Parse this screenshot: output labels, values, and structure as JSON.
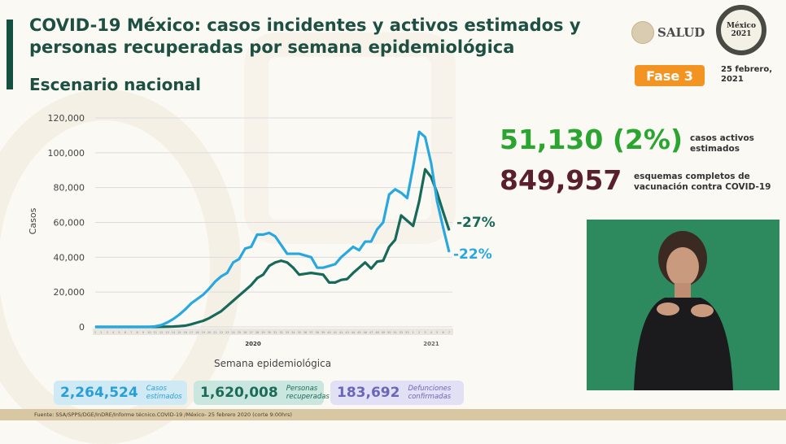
{
  "header": {
    "title": "COVID-19 México: casos incidentes y activos estimados y personas recuperadas por semana epidemiológica",
    "subtitle": "Escenario nacional",
    "logo_salud": "SALUD",
    "logo_2021": "México 2021",
    "phase": "Fase 3",
    "date_line1": "25 febrero,",
    "date_line2": "2021"
  },
  "stats": {
    "active_value": "51,130 (2%)",
    "active_label_1": "casos activos",
    "active_label_2": "estimados",
    "vaccine_value": "849,957",
    "vaccine_label_1": "esquemas completos de",
    "vaccine_label_2": "vacunación contra COVID-19"
  },
  "cards": [
    {
      "value": "2,264,524",
      "label_1": "Casos",
      "label_2": "estimados",
      "bg": "#cfeaf5",
      "color": "#2a9fd6"
    },
    {
      "value": "1,620,008",
      "label_1": "Personas",
      "label_2": "recuperadas",
      "bg": "#c9e6df",
      "color": "#1d6b5a"
    },
    {
      "value": "183,692",
      "label_1": "Defunciones",
      "label_2": "confirmadas",
      "bg": "#e2e0f5",
      "color": "#6a66b8"
    }
  ],
  "footer": "Fuente: SSA/SPPS/DGE/InDRE/Informe técnico.COVID-19 /México- 25 febrero 2020 (corte 9:00hrs)",
  "colors": {
    "incident": "#29a8e0",
    "active": "#17695a",
    "accent": "#f39422"
  },
  "chart_data": {
    "type": "line",
    "xlabel": "Semana epidemiológica",
    "ylabel": "Casos",
    "ylim": [
      0,
      120000
    ],
    "yticks": [
      "0",
      "20,000",
      "40,000",
      "60,000",
      "80,000",
      "100,000",
      "120,000"
    ],
    "year_labels": [
      "2020",
      "2021"
    ],
    "grid": true,
    "x": [
      "1",
      "2",
      "3",
      "4",
      "5",
      "6",
      "7",
      "8",
      "9",
      "10",
      "11",
      "12",
      "13",
      "14",
      "15",
      "16",
      "17",
      "18",
      "19",
      "20",
      "21",
      "22",
      "23",
      "24",
      "25",
      "26",
      "27",
      "28",
      "29",
      "30",
      "31",
      "32",
      "33",
      "34",
      "35",
      "36",
      "37",
      "38",
      "39",
      "40",
      "41",
      "42",
      "43",
      "44",
      "45",
      "46",
      "47",
      "48",
      "49",
      "50",
      "51",
      "52",
      "53",
      "1",
      "2",
      "3",
      "4",
      "5",
      "6",
      "7"
    ],
    "series": [
      {
        "color": "#29a8e0",
        "end_label": "-22%",
        "values": [
          0,
          0,
          0,
          0,
          0,
          0,
          0,
          0,
          0,
          0,
          300,
          1000,
          2500,
          4500,
          7000,
          10000,
          13500,
          16000,
          18500,
          22000,
          26000,
          29000,
          31000,
          37000,
          39000,
          45000,
          46000,
          53000,
          53000,
          54000,
          52000,
          47000,
          42000,
          42000,
          42000,
          41000,
          40000,
          34000,
          34000,
          35000,
          36000,
          40000,
          43000,
          46000,
          44000,
          49000,
          49000,
          56000,
          60000,
          76000,
          79000,
          77000,
          74000,
          92000,
          112000,
          109000,
          94000,
          72000,
          57000,
          43000
        ]
      },
      {
        "color": "#17695a",
        "end_label": "-27%",
        "values": [
          0,
          0,
          0,
          0,
          0,
          0,
          0,
          0,
          0,
          0,
          0,
          50,
          100,
          200,
          400,
          700,
          1500,
          2500,
          3500,
          5000,
          7000,
          9000,
          12000,
          15000,
          18000,
          21000,
          24000,
          28000,
          30000,
          35000,
          37000,
          38000,
          37000,
          34000,
          30000,
          30500,
          31000,
          30500,
          30000,
          25500,
          25500,
          27000,
          27500,
          31000,
          34000,
          37000,
          33500,
          37500,
          38000,
          46000,
          50000,
          64000,
          61000,
          58000,
          72000,
          90500,
          86000,
          77000,
          66000,
          55500
        ]
      }
    ]
  }
}
